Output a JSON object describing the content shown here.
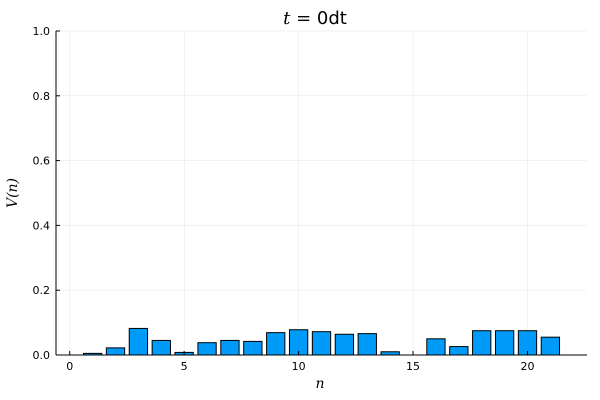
{
  "chart_data": {
    "type": "bar",
    "title": {
      "math": "t = ",
      "text": "0dt"
    },
    "xlabel": "n",
    "ylabel": "V(n)",
    "xlim": [
      -0.6,
      22.6
    ],
    "ylim": [
      0,
      1
    ],
    "xticks": [
      0,
      5,
      10,
      15,
      20
    ],
    "yticks": [
      0.0,
      0.2,
      0.4,
      0.6,
      0.8,
      1.0
    ],
    "ytick_labels": [
      "0.0",
      "0.2",
      "0.4",
      "0.6",
      "0.8",
      "1.0"
    ],
    "grid": true,
    "legend": false,
    "bar_color": "#009AF9",
    "x": [
      0,
      1,
      2,
      3,
      4,
      5,
      6,
      7,
      8,
      9,
      10,
      11,
      12,
      13,
      14,
      15,
      16,
      17,
      18,
      19,
      20,
      21
    ],
    "values": [
      0.0,
      0.005,
      0.022,
      0.082,
      0.045,
      0.008,
      0.038,
      0.045,
      0.042,
      0.069,
      0.078,
      0.072,
      0.064,
      0.066,
      0.01,
      0.0,
      0.05,
      0.026,
      0.075,
      0.075,
      0.075,
      0.055
    ]
  }
}
